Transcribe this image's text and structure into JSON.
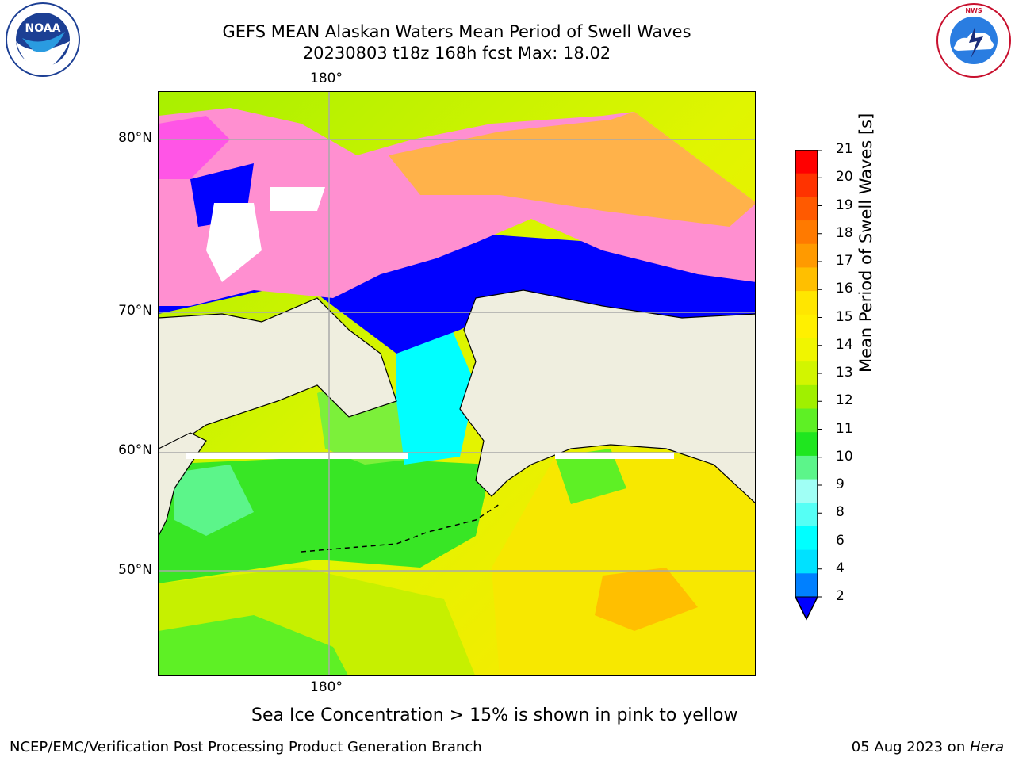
{
  "header": {
    "title_line1": "GEFS MEAN Alaskan Waters Mean Period of Swell Waves",
    "title_line2": "20230803 t18z 168h fcst   Max: 18.02"
  },
  "logos": {
    "left": {
      "icon": "noaa-logo-icon",
      "text": "NOAA"
    },
    "right": {
      "icon": "nws-logo-icon",
      "text": "NATIONAL WEATHER SERVICE"
    }
  },
  "map": {
    "lat_labels": [
      "80°N",
      "70°N",
      "60°N",
      "50°N"
    ],
    "lon_label_top": "180°",
    "lon_label_bottom": "180°",
    "land_color": "#efeedf",
    "gridline_color": "#a9a9a9"
  },
  "colorbar": {
    "title": "Mean Period of Swell Waves [s]",
    "ticks": [
      "21",
      "20",
      "19",
      "18",
      "17",
      "16",
      "15",
      "14",
      "13",
      "12",
      "11",
      "10",
      "9",
      "8",
      "6",
      "4",
      "2"
    ],
    "colors": [
      "#ff0000",
      "#ff3300",
      "#ff5a00",
      "#ff7a00",
      "#ff9a00",
      "#ffbf00",
      "#ffe600",
      "#fff000",
      "#f0f500",
      "#d2f500",
      "#a0f000",
      "#5ef025",
      "#1fe61f",
      "#5cf58a",
      "#a0fff5",
      "#55fff5",
      "#00ffff",
      "#00e1ff",
      "#0080ff",
      "#0000ff"
    ]
  },
  "caption": "Sea Ice Concentration > 15% is shown in pink to yellow",
  "footer": {
    "left": "NCEP/EMC/Verification Post Processing Product Generation Branch",
    "right_date": "05 Aug 2023 on ",
    "right_host": "Hera"
  }
}
